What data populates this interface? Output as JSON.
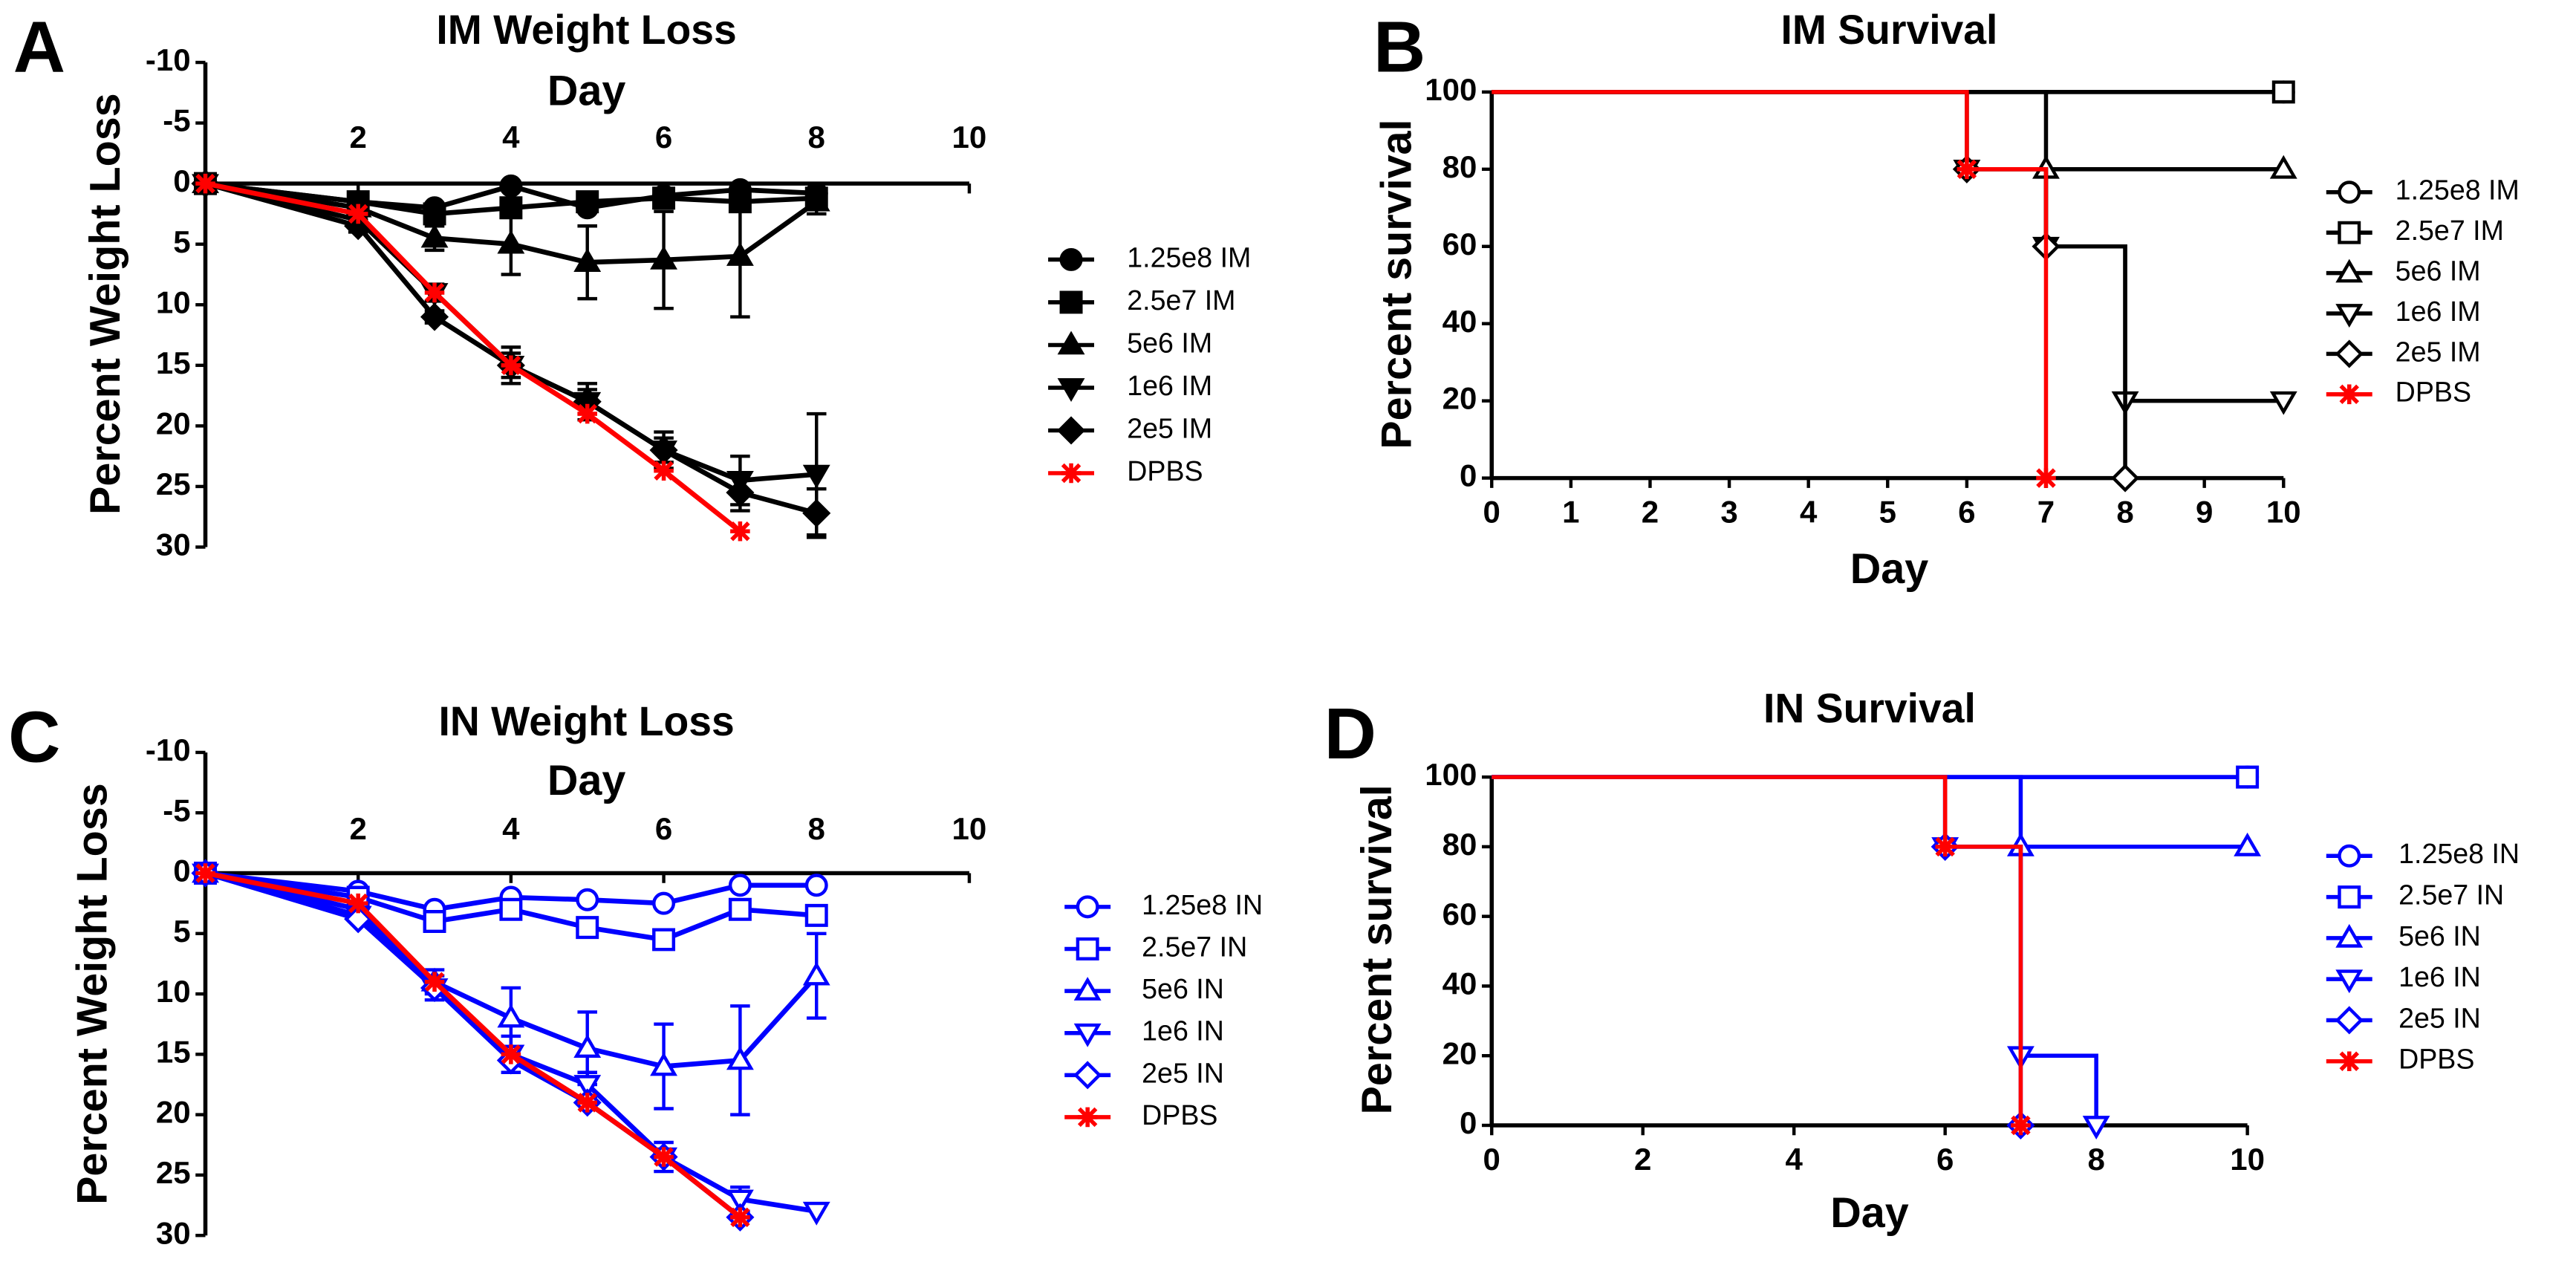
{
  "chart_data": [
    {
      "type": "line",
      "panel_label": "A",
      "title": "IM Weight Loss",
      "x_label": "Day",
      "y_label": "Percent Weight Loss",
      "y_reversed": true,
      "xlim": [
        0,
        10
      ],
      "xticks": [
        2,
        4,
        6,
        8,
        10
      ],
      "ylim": [
        -10,
        30
      ],
      "yticks": [
        -10,
        -5,
        0,
        5,
        10,
        15,
        20,
        25,
        30
      ],
      "x": [
        0,
        2,
        3,
        4,
        5,
        6,
        7,
        8
      ],
      "series": [
        {
          "name": "1.25e8 IM",
          "color": "#000000",
          "marker": "circle",
          "filled": true,
          "values": [
            0,
            1.5,
            2,
            0.2,
            2,
            1,
            0.5,
            0.8
          ]
        },
        {
          "name": "2.5e7 IM",
          "color": "#000000",
          "marker": "square",
          "filled": true,
          "values": [
            0,
            1.5,
            2.5,
            2,
            1.5,
            1.2,
            1.5,
            1.2
          ]
        },
        {
          "name": "5e6 IM",
          "color": "#000000",
          "marker": "triangle",
          "filled": true,
          "values": [
            0,
            2,
            4.5,
            5,
            6.5,
            6.3,
            6,
            1.5
          ],
          "errors": [
            0,
            0.5,
            1,
            2.5,
            3,
            4,
            5,
            1
          ]
        },
        {
          "name": "1e6 IM",
          "color": "#000000",
          "marker": "triangle-down",
          "filled": true,
          "values": [
            0,
            3,
            9,
            15,
            18,
            22,
            24.5,
            24
          ],
          "errors": [
            0,
            0.5,
            0.7,
            1,
            1,
            1,
            2,
            5
          ]
        },
        {
          "name": "2e5 IM",
          "color": "#000000",
          "marker": "diamond",
          "filled": true,
          "values": [
            0,
            3.5,
            11,
            15,
            18,
            22,
            25.5,
            27.2
          ],
          "errors": [
            0,
            0.5,
            0.5,
            1.5,
            1.5,
            1.5,
            1.5,
            2
          ]
        },
        {
          "name": "DPBS",
          "color": "#ff0000",
          "marker": "asterisk",
          "filled": true,
          "values": [
            0,
            2.5,
            9,
            15,
            19,
            23.7,
            28.7,
            null
          ]
        }
      ]
    },
    {
      "type": "step",
      "panel_label": "B",
      "title": "IM Survival",
      "x_label": "Day",
      "y_label": "Percent survival",
      "xlim": [
        0,
        10
      ],
      "xticks": [
        0,
        1,
        2,
        3,
        4,
        5,
        6,
        7,
        8,
        9,
        10
      ],
      "ylim": [
        0,
        100
      ],
      "yticks": [
        0,
        20,
        40,
        60,
        80,
        100
      ],
      "series": [
        {
          "name": "1.25e8 IM",
          "color": "#000000",
          "marker": "circle",
          "filled": false,
          "x": [
            0,
            10
          ],
          "values": [
            100,
            100
          ]
        },
        {
          "name": "2.5e7 IM",
          "color": "#000000",
          "marker": "square",
          "filled": false,
          "x": [
            0,
            10
          ],
          "values": [
            100,
            100
          ]
        },
        {
          "name": "5e6 IM",
          "color": "#000000",
          "marker": "triangle",
          "filled": false,
          "x": [
            0,
            7,
            10
          ],
          "values": [
            100,
            80,
            80
          ]
        },
        {
          "name": "1e6 IM",
          "color": "#000000",
          "marker": "triangle-down",
          "filled": false,
          "x": [
            0,
            6,
            7,
            8,
            10
          ],
          "values": [
            100,
            80,
            60,
            20,
            20
          ]
        },
        {
          "name": "2e5 IM",
          "color": "#000000",
          "marker": "diamond",
          "filled": false,
          "x": [
            0,
            6,
            7,
            8
          ],
          "values": [
            100,
            80,
            60,
            0
          ]
        },
        {
          "name": "DPBS",
          "color": "#ff0000",
          "marker": "asterisk",
          "filled": false,
          "x": [
            0,
            6,
            7
          ],
          "values": [
            100,
            80,
            0
          ]
        }
      ]
    },
    {
      "type": "line",
      "panel_label": "C",
      "title": "IN Weight Loss",
      "x_label": "Day",
      "y_label": "Percent Weight Loss",
      "y_reversed": true,
      "xlim": [
        0,
        10
      ],
      "xticks": [
        2,
        4,
        6,
        8,
        10
      ],
      "ylim": [
        -10,
        30
      ],
      "yticks": [
        -10,
        -5,
        0,
        5,
        10,
        15,
        20,
        25,
        30
      ],
      "x": [
        0,
        2,
        3,
        4,
        5,
        6,
        7,
        8
      ],
      "series": [
        {
          "name": "1.25e8 IN",
          "color": "#0000ff",
          "marker": "circle",
          "filled": false,
          "values": [
            0,
            1.5,
            3,
            2,
            2.2,
            2.5,
            1,
            1
          ]
        },
        {
          "name": "2.5e7 IN",
          "color": "#0000ff",
          "marker": "square",
          "filled": false,
          "values": [
            0,
            2,
            4,
            3,
            4.5,
            5.5,
            3,
            3.5
          ]
        },
        {
          "name": "5e6 IN",
          "color": "#0000ff",
          "marker": "triangle",
          "filled": false,
          "values": [
            0,
            3,
            9,
            12,
            14.5,
            16,
            15.5,
            8.5
          ],
          "errors": [
            0,
            0.5,
            1,
            2.5,
            3,
            3.5,
            4.5,
            3.5
          ]
        },
        {
          "name": "1e6 IN",
          "color": "#0000ff",
          "marker": "triangle-down",
          "filled": false,
          "values": [
            0,
            3.5,
            9.5,
            15,
            17.5,
            23.5,
            27,
            28
          ],
          "errors": [
            0,
            0.5,
            1,
            1.5,
            1,
            1.2,
            1,
            0
          ]
        },
        {
          "name": "2e5 IN",
          "color": "#0000ff",
          "marker": "diamond",
          "filled": false,
          "values": [
            0,
            3.8,
            9.5,
            15.5,
            19,
            23.5,
            28.5,
            null
          ]
        },
        {
          "name": "DPBS",
          "color": "#ff0000",
          "marker": "asterisk",
          "filled": false,
          "values": [
            0,
            2.5,
            9,
            15,
            19,
            23.5,
            28.5,
            null
          ]
        }
      ]
    },
    {
      "type": "step",
      "panel_label": "D",
      "title": "IN Survival",
      "x_label": "Day",
      "y_label": "Percent survival",
      "xlim": [
        0,
        10
      ],
      "xticks": [
        0,
        2,
        4,
        6,
        8,
        10
      ],
      "ylim": [
        0,
        100
      ],
      "yticks": [
        0,
        20,
        40,
        60,
        80,
        100
      ],
      "series": [
        {
          "name": "1.25e8 IN",
          "color": "#0000ff",
          "marker": "circle",
          "filled": false,
          "x": [
            0,
            10
          ],
          "values": [
            100,
            100
          ]
        },
        {
          "name": "2.5e7 IN",
          "color": "#0000ff",
          "marker": "square",
          "filled": false,
          "x": [
            0,
            10
          ],
          "values": [
            100,
            100
          ]
        },
        {
          "name": "5e6 IN",
          "color": "#0000ff",
          "marker": "triangle",
          "filled": false,
          "x": [
            0,
            7,
            10
          ],
          "values": [
            100,
            80,
            80
          ]
        },
        {
          "name": "1e6 IN",
          "color": "#0000ff",
          "marker": "triangle-down",
          "filled": false,
          "x": [
            0,
            6,
            7,
            8
          ],
          "values": [
            100,
            80,
            20,
            0
          ]
        },
        {
          "name": "2e5 IN",
          "color": "#0000ff",
          "marker": "diamond",
          "filled": false,
          "x": [
            0,
            6,
            7
          ],
          "values": [
            100,
            80,
            0
          ]
        },
        {
          "name": "DPBS",
          "color": "#ff0000",
          "marker": "asterisk",
          "filled": false,
          "x": [
            0,
            6,
            7
          ],
          "values": [
            100,
            80,
            0
          ]
        }
      ]
    }
  ]
}
